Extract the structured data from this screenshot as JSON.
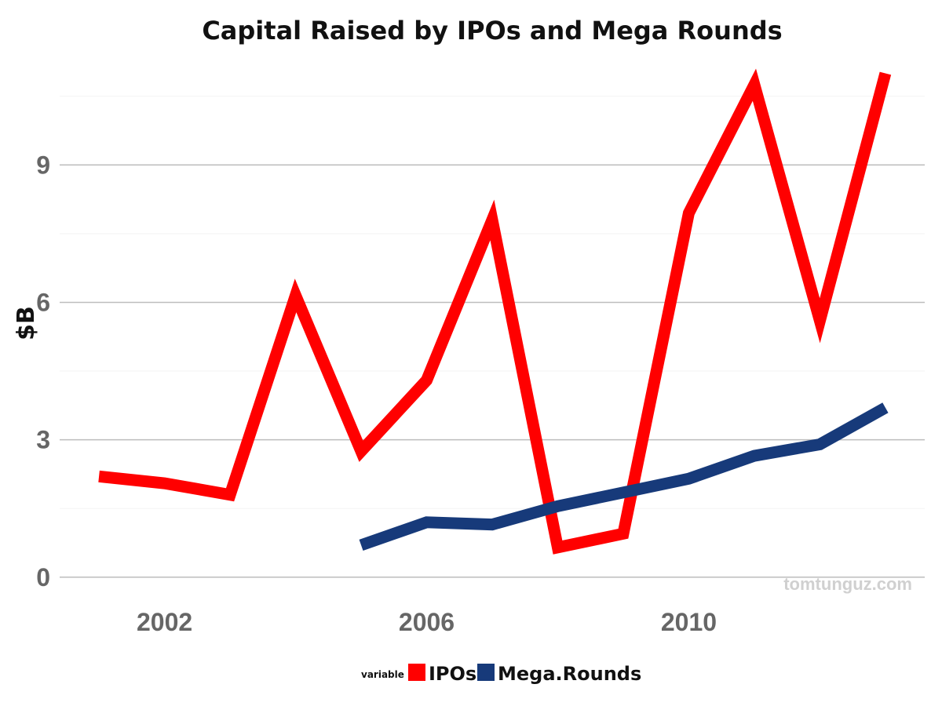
{
  "chart_data": {
    "type": "line",
    "title": "Capital Raised by IPOs and Mega Rounds",
    "xlabel": "",
    "ylabel": "$B",
    "xlim": [
      2000.4,
      2013.6
    ],
    "ylim": [
      -0.5,
      11.3
    ],
    "x_ticks": [
      2002,
      2006,
      2010
    ],
    "y_ticks": [
      0,
      3,
      6,
      9
    ],
    "grid": true,
    "legend": {
      "title": "variable",
      "position": "bottom"
    },
    "series": [
      {
        "name": "IPOs",
        "color": "#ff0000",
        "x": [
          2001,
          2002,
          2003,
          2004,
          2005,
          2006,
          2007,
          2008,
          2009,
          2010,
          2011,
          2012,
          2013
        ],
        "values": [
          2.2,
          2.05,
          1.8,
          6.15,
          2.75,
          4.3,
          7.8,
          0.65,
          0.95,
          7.95,
          10.75,
          5.6,
          11.0
        ]
      },
      {
        "name": "Mega.Rounds",
        "color": "#173a7a",
        "x": [
          2005,
          2006,
          2007,
          2008,
          2009,
          2010,
          2011,
          2012,
          2013
        ],
        "values": [
          0.7,
          1.2,
          1.15,
          1.55,
          1.85,
          2.15,
          2.65,
          2.9,
          3.7
        ]
      }
    ]
  },
  "watermark": "tomtunguz.com"
}
